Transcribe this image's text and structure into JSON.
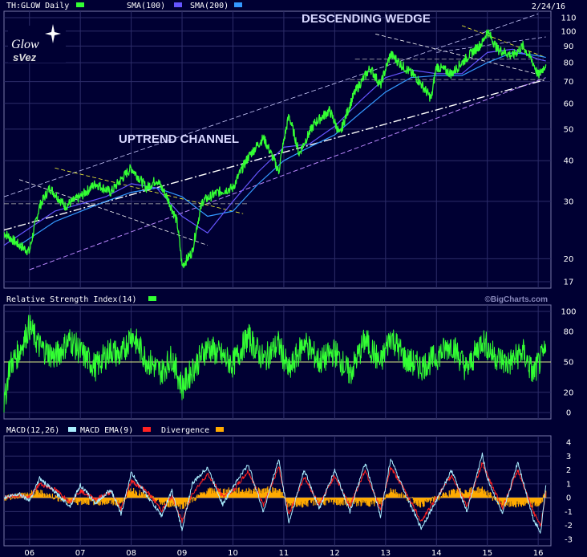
{
  "header": {
    "date": "2/24/16"
  },
  "logo": {
    "line1": "Glow",
    "line2": "sVez"
  },
  "annotations": {
    "wedge": "DESCENDING WEDGE",
    "channel": "UPTREND CHANNEL"
  },
  "watermark": "©BigCharts.com",
  "colors": {
    "background": "#000033",
    "price": "#33ff33",
    "sma100": "#6655ff",
    "sma200": "#3399ff",
    "rsi": "#33ff33",
    "macd": "#aaeeff",
    "macd_ema": "#ff2222",
    "divergence": "#ffaa00",
    "grid": "#2d2d6a"
  },
  "chart_data": [
    {
      "type": "line",
      "legend": [
        {
          "label": "TH:GLOW Daily",
          "color": "#33ff33"
        },
        {
          "label": "SMA(100)",
          "color": "#6655ff"
        },
        {
          "label": "SMA(200)",
          "color": "#3399ff"
        }
      ],
      "scale": "log",
      "ylim": [
        17,
        110
      ],
      "yticks": [
        110,
        100,
        90,
        80,
        70,
        60,
        50,
        40,
        30,
        20,
        17
      ],
      "xlim": [
        2005.5,
        2016.25
      ],
      "xticks": [
        "06",
        "07",
        "08",
        "09",
        "10",
        "11",
        "12",
        "13",
        "14",
        "15",
        "16"
      ],
      "series": [
        {
          "name": "TH:GLOW Daily",
          "x": [
            2005.5,
            2005.8,
            2006.0,
            2006.2,
            2006.4,
            2006.7,
            2007.0,
            2007.3,
            2007.6,
            2007.8,
            2008.0,
            2008.3,
            2008.5,
            2008.7,
            2008.9,
            2009.0,
            2009.2,
            2009.4,
            2009.7,
            2010.0,
            2010.3,
            2010.6,
            2010.9,
            2011.1,
            2011.3,
            2011.6,
            2011.9,
            2012.1,
            2012.4,
            2012.7,
            2012.9,
            2013.1,
            2013.3,
            2013.6,
            2013.9,
            2014.0,
            2014.3,
            2014.6,
            2014.9,
            2015.0,
            2015.2,
            2015.5,
            2015.7,
            2015.9,
            2016.0,
            2016.15
          ],
          "y": [
            24,
            22,
            21,
            29,
            33,
            29,
            31,
            34,
            32,
            35,
            38,
            33,
            35,
            31,
            26,
            19,
            21,
            30,
            32,
            33,
            41,
            47,
            37,
            55,
            42,
            52,
            57,
            48,
            65,
            77,
            68,
            85,
            79,
            72,
            62,
            78,
            74,
            83,
            92,
            100,
            88,
            84,
            90,
            80,
            73,
            79
          ]
        },
        {
          "name": "SMA(100)",
          "x": [
            2005.5,
            2006.5,
            2007.5,
            2008.0,
            2008.5,
            2009.0,
            2009.5,
            2010.0,
            2010.5,
            2011.0,
            2011.5,
            2012.0,
            2012.5,
            2013.0,
            2013.5,
            2014.0,
            2014.5,
            2015.0,
            2015.5,
            2016.0,
            2016.15
          ],
          "y": [
            22,
            28,
            31,
            34,
            33,
            27,
            24,
            30,
            37,
            44,
            45,
            51,
            61,
            72,
            76,
            74,
            74,
            86,
            88,
            82,
            81
          ]
        },
        {
          "name": "SMA(200)",
          "x": [
            2005.8,
            2006.5,
            2007.5,
            2008.0,
            2008.5,
            2009.0,
            2009.5,
            2010.0,
            2010.5,
            2011.0,
            2011.5,
            2012.0,
            2012.5,
            2013.0,
            2013.5,
            2014.0,
            2014.5,
            2015.0,
            2015.5,
            2016.0,
            2016.15
          ],
          "y": [
            22,
            26,
            30,
            32,
            33,
            31,
            27,
            28,
            34,
            40,
            44,
            48,
            56,
            65,
            72,
            73,
            73,
            80,
            86,
            84,
            83
          ]
        }
      ]
    },
    {
      "type": "line",
      "legend": [
        {
          "label": "Relative Strength Index(14)",
          "color": "#33ff33"
        }
      ],
      "ylim": [
        0,
        100
      ],
      "yticks": [
        100,
        80,
        50,
        20,
        0
      ],
      "xlim": [
        2005.5,
        2016.25
      ],
      "series": [
        {
          "name": "Relative Strength Index(14)",
          "x": [
            2005.5,
            2005.6,
            2005.8,
            2006.0,
            2006.2,
            2006.5,
            2006.8,
            2007.0,
            2007.3,
            2007.6,
            2007.8,
            2008.0,
            2008.3,
            2008.6,
            2008.8,
            2009.0,
            2009.2,
            2009.5,
            2009.8,
            2010.0,
            2010.3,
            2010.6,
            2010.9,
            2011.1,
            2011.4,
            2011.7,
            2012.0,
            2012.3,
            2012.6,
            2012.9,
            2013.1,
            2013.4,
            2013.7,
            2014.0,
            2014.3,
            2014.6,
            2014.9,
            2015.1,
            2015.4,
            2015.7,
            2015.9,
            2016.05,
            2016.15
          ],
          "y": [
            5,
            45,
            60,
            85,
            65,
            55,
            72,
            60,
            45,
            62,
            55,
            78,
            52,
            40,
            55,
            25,
            42,
            65,
            55,
            48,
            75,
            52,
            68,
            40,
            70,
            50,
            60,
            38,
            72,
            48,
            76,
            52,
            45,
            55,
            68,
            42,
            72,
            58,
            48,
            60,
            38,
            52,
            60
          ]
        }
      ]
    },
    {
      "type": "line",
      "legend": [
        {
          "label": "MACD(12,26)",
          "color": "#aaeeff"
        },
        {
          "label": "MACD EMA(9)",
          "color": "#ff2222"
        },
        {
          "label": "Divergence",
          "color": "#ffaa00"
        }
      ],
      "ylim": [
        -3,
        4
      ],
      "yticks": [
        4,
        3,
        2,
        1,
        0,
        -1,
        -2,
        -3
      ],
      "xlim": [
        2005.5,
        2016.25
      ],
      "series": [
        {
          "name": "MACD(12,26)",
          "x": [
            2005.5,
            2005.8,
            2006.0,
            2006.2,
            2006.5,
            2006.8,
            2007.0,
            2007.3,
            2007.6,
            2007.8,
            2008.0,
            2008.3,
            2008.6,
            2008.8,
            2009.0,
            2009.2,
            2009.5,
            2009.8,
            2010.0,
            2010.3,
            2010.6,
            2010.9,
            2011.1,
            2011.4,
            2011.7,
            2012.0,
            2012.3,
            2012.6,
            2012.9,
            2013.1,
            2013.4,
            2013.7,
            2014.0,
            2014.3,
            2014.6,
            2014.9,
            2015.0,
            2015.3,
            2015.6,
            2015.9,
            2016.05,
            2016.15
          ],
          "y": [
            0,
            0.3,
            -0.2,
            1.4,
            0.4,
            -0.6,
            0.9,
            -0.4,
            0.6,
            -1.2,
            1.8,
            0.2,
            -1.3,
            0.5,
            -2.3,
            1.0,
            2.2,
            -0.5,
            0.8,
            2.4,
            -1.0,
            2.8,
            -1.8,
            2.0,
            -0.8,
            2.0,
            -1.0,
            2.5,
            -1.3,
            2.8,
            0.2,
            -2.2,
            -0.2,
            2.0,
            -1.0,
            3.1,
            1.4,
            -1.2,
            2.6,
            -1.5,
            -2.5,
            0.9
          ]
        },
        {
          "name": "MACD EMA(9)",
          "x": [
            2005.5,
            2005.8,
            2006.0,
            2006.2,
            2006.5,
            2006.8,
            2007.0,
            2007.3,
            2007.6,
            2007.8,
            2008.0,
            2008.3,
            2008.6,
            2008.8,
            2009.0,
            2009.2,
            2009.5,
            2009.8,
            2010.0,
            2010.3,
            2010.6,
            2010.9,
            2011.1,
            2011.4,
            2011.7,
            2012.0,
            2012.3,
            2012.6,
            2012.9,
            2013.1,
            2013.4,
            2013.7,
            2014.0,
            2014.3,
            2014.6,
            2014.9,
            2015.0,
            2015.3,
            2015.6,
            2015.9,
            2016.05,
            2016.15
          ],
          "y": [
            0,
            0.2,
            0,
            1.0,
            0.6,
            -0.3,
            0.5,
            -0.1,
            0.4,
            -0.8,
            1.2,
            0.5,
            -0.9,
            0.1,
            -1.7,
            0.3,
            1.7,
            0.1,
            0.5,
            1.9,
            -0.5,
            2.2,
            -1.2,
            1.5,
            -0.5,
            1.6,
            -0.6,
            2.0,
            -0.9,
            2.2,
            0.4,
            -1.7,
            0,
            1.6,
            -0.6,
            2.5,
            1.6,
            -0.7,
            2.0,
            -1.0,
            -2.0,
            0.4
          ]
        },
        {
          "name": "Divergence",
          "x": [
            2005.5,
            2006.2,
            2006.8,
            2007.3,
            2007.8,
            2008.0,
            2008.6,
            2009.0,
            2009.5,
            2010.3,
            2010.9,
            2011.1,
            2011.7,
            2012.3,
            2012.9,
            2013.1,
            2013.7,
            2014.3,
            2014.9,
            2015.3,
            2015.9,
            2016.05,
            2016.15
          ],
          "y": [
            0,
            0.4,
            -0.3,
            -0.3,
            -0.4,
            0.6,
            -0.4,
            -0.6,
            0.5,
            0.5,
            0.6,
            -0.6,
            -0.3,
            -0.4,
            -0.4,
            0.6,
            -0.5,
            0.4,
            0.6,
            -0.5,
            -0.5,
            -0.5,
            0.5
          ]
        }
      ]
    }
  ]
}
